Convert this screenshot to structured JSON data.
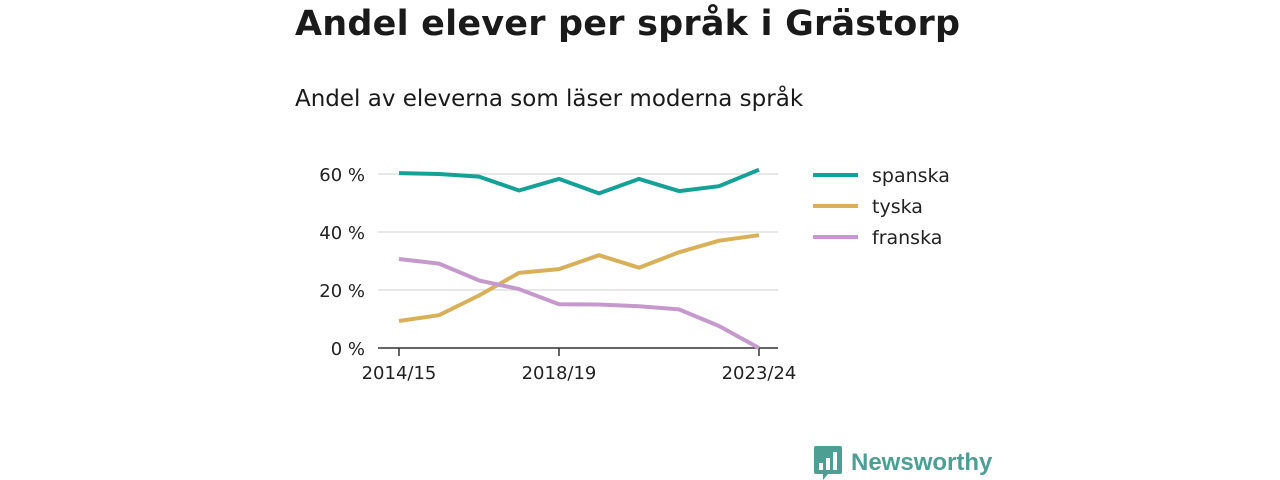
{
  "title": "Andel elever per språk i Grästorp",
  "subtitle": "Andel av eleverna som läser moderna språk",
  "brand": {
    "name": "Newsworthy",
    "color": "#4d9e93",
    "icon": "bar-chart-speech-bubble-icon"
  },
  "chart_data": {
    "type": "line",
    "title": "Andel elever per språk i Grästorp",
    "subtitle": "Andel av eleverna som läser moderna språk",
    "x": [
      "2014/15",
      "2015/16",
      "2016/17",
      "2017/18",
      "2018/19",
      "2019/20",
      "2020/21",
      "2021/22",
      "2022/23",
      "2023/24"
    ],
    "x_tick_labels": [
      "2014/15",
      "2018/19",
      "2023/24"
    ],
    "ylim": [
      0,
      60
    ],
    "y_ticks": [
      0,
      20,
      40,
      60
    ],
    "y_tick_labels": [
      "0 %",
      "20 %",
      "40 %",
      "60 %"
    ],
    "grid": true,
    "legend_position": "right",
    "series": [
      {
        "name": "spanska",
        "color": "#15a196",
        "values": [
          60.3,
          60.0,
          59.1,
          54.3,
          58.3,
          53.3,
          58.3,
          54.1,
          55.8,
          61.5
        ]
      },
      {
        "name": "tyska",
        "color": "#d8b05a",
        "values": [
          9.3,
          11.3,
          18.1,
          25.9,
          27.2,
          32.0,
          27.7,
          33.0,
          37.0,
          38.9
        ]
      },
      {
        "name": "franska",
        "color": "#c599cc",
        "values": [
          30.7,
          29.1,
          23.3,
          20.3,
          15.1,
          15.0,
          14.4,
          13.3,
          7.6,
          0.0
        ]
      }
    ]
  }
}
